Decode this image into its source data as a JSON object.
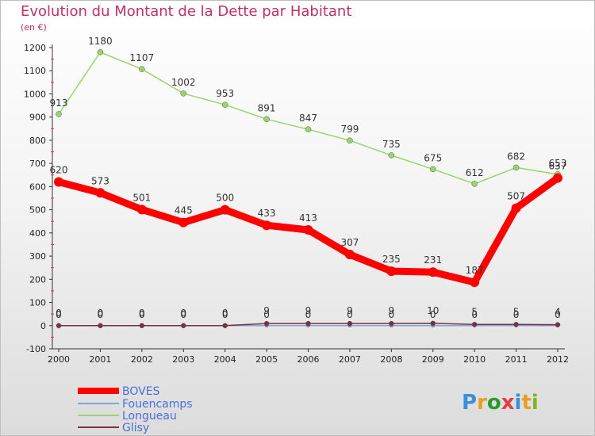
{
  "chart_data": {
    "type": "line",
    "title": "Evolution du Montant de la Dette par Habitant",
    "subtitle": "(en €)",
    "xlabel": "",
    "ylabel": "",
    "x": [
      "2000",
      "2001",
      "2002",
      "2003",
      "2004",
      "2005",
      "2006",
      "2007",
      "2008",
      "2009",
      "2010",
      "2011",
      "2012"
    ],
    "ylim": [
      -100,
      1200
    ],
    "yticks": [
      -100,
      0,
      100,
      200,
      300,
      400,
      500,
      600,
      700,
      800,
      900,
      1000,
      1100,
      1200
    ],
    "grid": false,
    "legend_position": "bottom-left",
    "series": [
      {
        "name": "BOVES",
        "values": [
          620,
          573,
          501,
          445,
          500,
          433,
          413,
          307,
          235,
          231,
          187,
          507,
          637
        ],
        "color": "#ff0000"
      },
      {
        "name": "Fouencamps",
        "values": [
          0,
          0,
          0,
          0,
          0,
          0,
          0,
          0,
          0,
          0,
          0,
          0,
          0
        ],
        "color": "#7ba7d6"
      },
      {
        "name": "Longueau",
        "values": [
          913,
          1180,
          1107,
          1002,
          953,
          891,
          847,
          799,
          735,
          675,
          612,
          682,
          653
        ],
        "color": "#9bd46b"
      },
      {
        "name": "Glisy",
        "values": [
          0,
          0,
          0,
          0,
          0,
          9,
          9,
          9,
          9,
          10,
          5,
          5,
          4
        ],
        "color": "#7a3040"
      }
    ]
  },
  "legend_colors": {
    "label_color": "#4a6fd8"
  },
  "logo": {
    "letters": [
      "P",
      "r",
      "o",
      "x",
      "i",
      "t",
      "i"
    ],
    "colors": [
      "#3a8fd8",
      "#e8a020",
      "#2a9a2a",
      "#e04040",
      "#3a8fd8",
      "#e8a020",
      "#7ab820"
    ]
  }
}
